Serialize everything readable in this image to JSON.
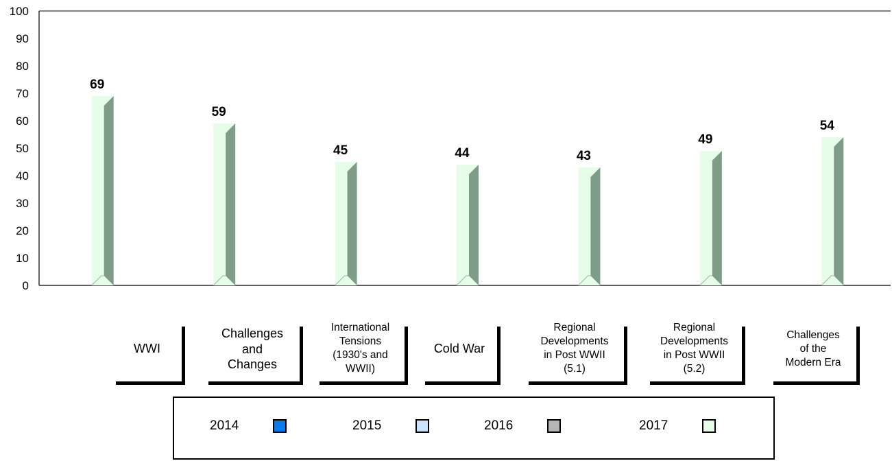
{
  "chart_data": {
    "type": "bar",
    "categories": [
      [
        "WWI"
      ],
      [
        "Challenges",
        "and",
        "Changes"
      ],
      [
        "International",
        "Tensions",
        "(1930's and",
        "WWII)"
      ],
      [
        "Cold War"
      ],
      [
        "Regional",
        "Developments",
        "in Post WWII",
        "(5.1)"
      ],
      [
        "Regional",
        "Developments",
        "in Post WWII",
        "(5.2)"
      ],
      [
        "Challenges",
        "of the",
        "Modern Era"
      ]
    ],
    "series": [
      {
        "name": "2014",
        "color": "#0a7be8",
        "values": [
          null,
          null,
          null,
          null,
          null,
          null,
          null
        ]
      },
      {
        "name": "2015",
        "color": "#cde3fb",
        "values": [
          null,
          null,
          null,
          null,
          null,
          null,
          null
        ]
      },
      {
        "name": "2016",
        "color": "#b5b5b5",
        "values": [
          null,
          null,
          null,
          null,
          null,
          null,
          null
        ]
      },
      {
        "name": "2017",
        "color": "#e6fde9",
        "values": [
          69,
          59,
          45,
          44,
          43,
          49,
          54
        ]
      }
    ],
    "data_labels": [
      "69",
      "59",
      "45",
      "44",
      "43",
      "49",
      "54"
    ],
    "y_ticks": [
      "0",
      "10",
      "20",
      "30",
      "40",
      "50",
      "60",
      "70",
      "80",
      "90",
      "100"
    ],
    "ylim": [
      0,
      100
    ],
    "grid": false,
    "legend_position": "bottom"
  },
  "legend": [
    {
      "label": "2014",
      "color": "#0a7be8"
    },
    {
      "label": "2015",
      "color": "#cde3fb"
    },
    {
      "label": "2016",
      "color": "#b5b5b5"
    },
    {
      "label": "2017",
      "color": "#e6fde9"
    }
  ]
}
